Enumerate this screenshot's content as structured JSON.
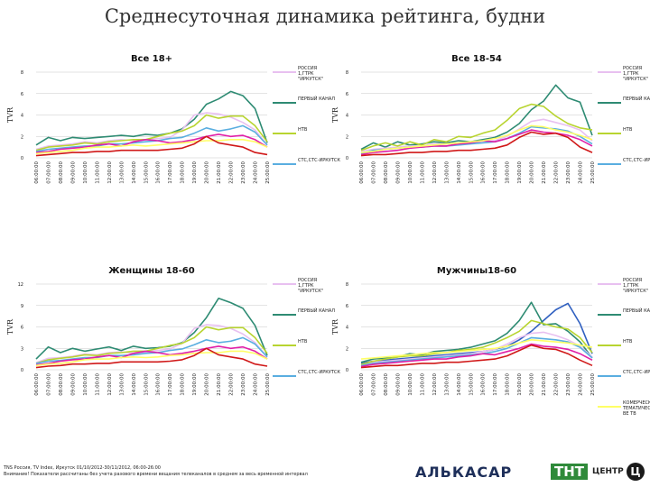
{
  "page": {
    "title": "Среднесуточная динамика рейтинга, будни",
    "footer_source": "TNS Россия, TV Index, Иркутск 01/10/2012-30/11/2012, 06:00-26:00",
    "footer_note": "Внимание! Показатели рассчитаны без учета разового времени вещания телеканалов в среднем за весь временной интервал"
  },
  "logos": {
    "alkasar": "АЛЬКАСАР",
    "tnt": "ТНТ",
    "centr": "ЦЕНТР",
    "c_mark": "Ц"
  },
  "colors": {
    "РОССИЯ 1,ГТРК \"ИРКУТСК\"": "#e8c0f0",
    "ПЕРВЫЙ КАНАЛ": "#2e8b73",
    "НТВ": "#b8d430",
    "СТС,СТС-ИРКУТСК": "#5aaee0",
    "ДОМАШНИЙ": "#e9a8c8",
    "РЕН ТВ": "#d0e040",
    "ТНТ": "#e020a8",
    "ПЯТЫЙ КАНАЛ": "#d01818",
    "КОМЕРЧЕСКИЕ ТЕМАТИЧЕСКИЕ": "#ffff66",
    "ОТВЕТ": "#3060c0"
  },
  "chart_data": [
    {
      "type": "line",
      "title": "Все 18+",
      "ylabel": "TVR",
      "ylim": [
        0,
        8
      ],
      "yticks": [
        0,
        2,
        4,
        6,
        8
      ],
      "x": [
        "06:00:00",
        "07:00:00",
        "08:00:00",
        "09:00:00",
        "10:00:00",
        "11:00:00",
        "12:00:00",
        "13:00:00",
        "14:00:00",
        "15:00:00",
        "16:00:00",
        "17:00:00",
        "18:00:00",
        "19:00:00",
        "20:00:00",
        "21:00:00",
        "22:00:00",
        "23:00:00",
        "24:00:00",
        "25:00:00"
      ],
      "legend": [
        {
          "label": "РОССИЯ 1,ГТРК \"ИРКУТСК\"",
          "color": "#e8c0f0"
        },
        {
          "label": "ПЕРВЫЙ КАНАЛ",
          "color": "#2e8b73"
        },
        {
          "label": "НТВ",
          "color": "#b8d430"
        },
        {
          "label": "СТС,СТС-ИРКУТСК",
          "color": "#5aaee0"
        }
      ],
      "series": [
        {
          "color": "#2e8b73",
          "values": [
            1.2,
            1.9,
            1.6,
            1.9,
            1.8,
            1.9,
            2.0,
            2.1,
            2.0,
            2.2,
            2.1,
            2.3,
            2.7,
            3.6,
            5.0,
            5.5,
            6.2,
            5.8,
            4.6,
            1.4
          ]
        },
        {
          "color": "#e8c0f0",
          "values": [
            0.8,
            1.1,
            1.2,
            1.3,
            1.5,
            1.4,
            1.6,
            1.7,
            1.6,
            1.7,
            1.8,
            1.9,
            2.6,
            4.0,
            4.2,
            4.1,
            3.8,
            3.3,
            2.6,
            1.2
          ]
        },
        {
          "color": "#b8d430",
          "values": [
            0.7,
            1.0,
            1.1,
            1.2,
            1.4,
            1.3,
            1.5,
            1.6,
            1.7,
            1.7,
            2.0,
            2.3,
            2.5,
            3.0,
            4.0,
            3.7,
            3.9,
            3.9,
            3.0,
            1.5
          ]
        },
        {
          "color": "#5aaee0",
          "values": [
            0.6,
            0.8,
            0.9,
            1.0,
            1.1,
            1.1,
            1.3,
            1.3,
            1.4,
            1.5,
            1.6,
            1.8,
            1.9,
            2.3,
            2.8,
            2.5,
            2.7,
            3.0,
            2.4,
            1.2
          ]
        },
        {
          "color": "#e020a8",
          "values": [
            0.5,
            0.6,
            0.8,
            0.9,
            1.0,
            1.2,
            1.3,
            1.1,
            1.5,
            1.7,
            1.6,
            1.4,
            1.5,
            1.7,
            2.0,
            2.2,
            2.0,
            2.1,
            1.7,
            1.0
          ]
        },
        {
          "color": "#ffff66",
          "values": [
            0.4,
            0.5,
            0.6,
            0.7,
            0.9,
            1.0,
            1.0,
            1.1,
            1.2,
            1.1,
            1.2,
            1.3,
            1.4,
            1.5,
            1.6,
            1.6,
            1.7,
            1.7,
            1.5,
            1.0
          ]
        },
        {
          "color": "#d01818",
          "values": [
            0.2,
            0.3,
            0.4,
            0.5,
            0.5,
            0.6,
            0.6,
            0.7,
            0.7,
            0.7,
            0.7,
            0.8,
            0.9,
            1.3,
            2.0,
            1.4,
            1.2,
            1.0,
            0.5,
            0.3
          ]
        }
      ]
    },
    {
      "type": "line",
      "title": "Все 18-54",
      "ylabel": "TVR",
      "ylim": [
        0,
        8
      ],
      "yticks": [
        0,
        2,
        4,
        6,
        8
      ],
      "x": [
        "06:00:00",
        "07:00:00",
        "08:00:00",
        "09:00:00",
        "10:00:00",
        "11:00:00",
        "12:00:00",
        "13:00:00",
        "14:00:00",
        "15:00:00",
        "16:00:00",
        "17:00:00",
        "18:00:00",
        "19:00:00",
        "20:00:00",
        "21:00:00",
        "22:00:00",
        "23:00:00",
        "24:00:00",
        "25:00:00"
      ],
      "legend": [
        {
          "label": "РОССИЯ 1,ГТРК \"ИРКУТСК\"",
          "color": "#e8c0f0"
        },
        {
          "label": "ПЕРВЫЙ КАНАЛ",
          "color": "#2e8b73"
        },
        {
          "label": "НТВ",
          "color": "#b8d430"
        },
        {
          "label": "СТС,СТС-ИРКУТСК",
          "color": "#5aaee0"
        }
      ],
      "series": [
        {
          "color": "#2e8b73",
          "values": [
            0.8,
            1.4,
            1.0,
            1.5,
            1.2,
            1.3,
            1.5,
            1.4,
            1.6,
            1.5,
            1.7,
            1.9,
            2.4,
            3.2,
            4.5,
            5.3,
            6.8,
            5.6,
            5.2,
            2.1
          ]
        },
        {
          "color": "#e8c0f0",
          "values": [
            0.6,
            0.8,
            0.9,
            1.0,
            1.1,
            1.1,
            1.3,
            1.3,
            1.4,
            1.4,
            1.5,
            1.6,
            2.0,
            2.7,
            3.4,
            3.6,
            3.3,
            3.0,
            2.6,
            1.6
          ]
        },
        {
          "color": "#b8d430",
          "values": [
            0.7,
            1.1,
            1.4,
            1.1,
            1.5,
            1.2,
            1.7,
            1.5,
            2.0,
            1.9,
            2.3,
            2.6,
            3.5,
            4.6,
            5.0,
            4.8,
            3.9,
            3.2,
            2.8,
            2.6
          ]
        },
        {
          "color": "#5aaee0",
          "values": [
            0.4,
            0.7,
            0.8,
            0.9,
            1.0,
            1.0,
            1.1,
            1.1,
            1.2,
            1.3,
            1.4,
            1.5,
            1.8,
            2.3,
            2.9,
            2.8,
            2.7,
            2.5,
            2.0,
            1.3
          ]
        },
        {
          "color": "#e020a8",
          "values": [
            0.3,
            0.5,
            0.6,
            0.7,
            0.9,
            1.0,
            1.1,
            1.1,
            1.3,
            1.4,
            1.6,
            1.5,
            1.8,
            2.2,
            2.6,
            2.4,
            2.3,
            2.1,
            1.7,
            1.1
          ]
        },
        {
          "color": "#ffff66",
          "values": [
            0.5,
            0.6,
            0.8,
            0.9,
            1.0,
            1.1,
            1.2,
            1.3,
            1.4,
            1.5,
            1.6,
            1.8,
            2.1,
            2.6,
            3.0,
            2.9,
            2.6,
            2.4,
            2.1,
            1.7
          ]
        },
        {
          "color": "#d01818",
          "values": [
            0.2,
            0.3,
            0.3,
            0.4,
            0.5,
            0.5,
            0.6,
            0.6,
            0.7,
            0.7,
            0.8,
            0.9,
            1.2,
            1.9,
            2.4,
            2.2,
            2.3,
            1.9,
            1.0,
            0.5
          ]
        }
      ]
    },
    {
      "type": "line",
      "title": "Женщины 18-60",
      "ylabel": "TVR",
      "ylim": [
        0,
        12
      ],
      "yticks": [
        0,
        3,
        6,
        9,
        12
      ],
      "x": [
        "06:00:00",
        "07:00:00",
        "08:00:00",
        "09:00:00",
        "10:00:00",
        "11:00:00",
        "12:00:00",
        "13:00:00",
        "14:00:00",
        "15:00:00",
        "16:00:00",
        "17:00:00",
        "18:00:00",
        "19:00:00",
        "20:00:00",
        "21:00:00",
        "22:00:00",
        "23:00:00",
        "24:00:00",
        "25:00:00"
      ],
      "legend": [
        {
          "label": "РОССИЯ 1,ГТРК \"ИРКУТСК\"",
          "color": "#e8c0f0"
        },
        {
          "label": "ПЕРВЫЙ КАНАЛ",
          "color": "#2e8b73"
        },
        {
          "label": "НТВ",
          "color": "#b8d430"
        },
        {
          "label": "СТС,СТС-ИРКУТСК",
          "color": "#5aaee0"
        }
      ],
      "series": [
        {
          "color": "#2e8b73",
          "values": [
            1.5,
            3.2,
            2.4,
            3.0,
            2.6,
            2.9,
            3.2,
            2.7,
            3.3,
            3.0,
            3.1,
            3.3,
            3.8,
            5.2,
            7.3,
            10.0,
            9.4,
            8.6,
            6.2,
            2.0
          ]
        },
        {
          "color": "#e8c0f0",
          "values": [
            1.0,
            1.6,
            1.7,
            1.9,
            2.2,
            2.1,
            2.4,
            2.5,
            2.3,
            2.5,
            2.7,
            2.9,
            3.7,
            5.8,
            6.3,
            6.2,
            5.8,
            5.0,
            3.8,
            1.8
          ]
        },
        {
          "color": "#b8d430",
          "values": [
            0.9,
            1.4,
            1.6,
            1.8,
            2.1,
            2.0,
            2.3,
            2.4,
            2.6,
            2.6,
            3.0,
            3.4,
            3.7,
            4.5,
            6.0,
            5.6,
            5.9,
            5.9,
            4.5,
            2.3
          ]
        },
        {
          "color": "#5aaee0",
          "values": [
            0.9,
            1.2,
            1.3,
            1.5,
            1.7,
            1.7,
            2.0,
            2.0,
            2.1,
            2.3,
            2.4,
            2.7,
            2.9,
            3.5,
            4.2,
            3.8,
            4.0,
            4.5,
            3.6,
            1.8
          ]
        },
        {
          "color": "#e020a8",
          "values": [
            0.7,
            0.9,
            1.2,
            1.4,
            1.5,
            1.8,
            2.0,
            1.7,
            2.3,
            2.6,
            2.4,
            2.1,
            2.3,
            2.6,
            3.0,
            3.3,
            3.0,
            3.2,
            2.6,
            1.5
          ]
        },
        {
          "color": "#ffff66",
          "values": [
            0.6,
            0.8,
            0.9,
            1.1,
            1.4,
            1.5,
            1.5,
            1.7,
            1.8,
            1.7,
            1.8,
            2.0,
            2.1,
            2.3,
            2.4,
            2.4,
            2.6,
            2.6,
            2.3,
            1.5
          ]
        },
        {
          "color": "#d01818",
          "values": [
            0.3,
            0.5,
            0.6,
            0.8,
            0.8,
            0.9,
            0.9,
            1.1,
            1.1,
            1.1,
            1.1,
            1.2,
            1.4,
            2.0,
            3.0,
            2.1,
            1.8,
            1.5,
            0.8,
            0.5
          ]
        }
      ]
    },
    {
      "type": "line",
      "title": "Мужчины18-60",
      "ylabel": "TVR",
      "ylim": [
        0,
        8
      ],
      "yticks": [
        0,
        2,
        4,
        6,
        8
      ],
      "x": [
        "06:00:00",
        "07:00:00",
        "08:00:00",
        "09:00:00",
        "10:00:00",
        "11:00:00",
        "12:00:00",
        "13:00:00",
        "14:00:00",
        "15:00:00",
        "16:00:00",
        "17:00:00",
        "18:00:00",
        "19:00:00",
        "20:00:00",
        "21:00:00",
        "22:00:00",
        "23:00:00",
        "24:00:00",
        "25:00:00"
      ],
      "legend": [
        {
          "label": "РОССИЯ 1,ГТРК \"ИРКУТСК\"",
          "color": "#e8c0f0"
        },
        {
          "label": "ПЕРВЫЙ КАНАЛ",
          "color": "#2e8b73"
        },
        {
          "label": "НТВ",
          "color": "#b8d430"
        },
        {
          "label": "СТС,СТС-ИРКУТСК",
          "color": "#5aaee0"
        },
        {
          "label": "КОМЕРЧЕСКИЕ ТЕМАТИЧЕСКИЕ ВЕ ТВ",
          "color": "#ffff66"
        }
      ],
      "series": [
        {
          "color": "#3060c0",
          "values": [
            0.6,
            0.8,
            0.9,
            1.0,
            1.1,
            1.2,
            1.3,
            1.4,
            1.5,
            1.6,
            1.7,
            1.9,
            2.2,
            2.8,
            3.6,
            4.6,
            5.6,
            6.2,
            4.3,
            1.5
          ]
        },
        {
          "color": "#2e8b73",
          "values": [
            0.7,
            1.0,
            1.1,
            1.2,
            1.5,
            1.4,
            1.7,
            1.8,
            1.9,
            2.1,
            2.4,
            2.7,
            3.4,
            4.6,
            6.3,
            4.2,
            4.3,
            3.6,
            2.6,
            1.1
          ]
        },
        {
          "color": "#e8c0f0",
          "values": [
            0.5,
            0.7,
            0.8,
            0.9,
            1.0,
            1.1,
            1.2,
            1.3,
            1.4,
            1.5,
            1.7,
            1.9,
            2.4,
            3.0,
            3.4,
            3.5,
            3.2,
            2.8,
            2.2,
            1.2
          ]
        },
        {
          "color": "#b8d430",
          "values": [
            0.5,
            0.8,
            1.0,
            1.2,
            1.3,
            1.3,
            1.5,
            1.6,
            1.8,
            1.9,
            2.1,
            2.5,
            3.0,
            3.6,
            4.6,
            4.3,
            4.0,
            3.8,
            3.0,
            1.6
          ]
        },
        {
          "color": "#5aaee0",
          "values": [
            0.4,
            0.6,
            0.7,
            0.8,
            0.9,
            1.0,
            1.1,
            1.2,
            1.3,
            1.4,
            1.5,
            1.7,
            2.0,
            2.5,
            3.0,
            2.9,
            2.8,
            2.6,
            2.1,
            1.1
          ]
        },
        {
          "color": "#e020a8",
          "values": [
            0.3,
            0.5,
            0.6,
            0.7,
            0.8,
            0.9,
            1.0,
            1.0,
            1.2,
            1.3,
            1.5,
            1.4,
            1.7,
            2.0,
            2.4,
            2.2,
            2.1,
            1.9,
            1.5,
            0.9
          ]
        },
        {
          "color": "#ffff66",
          "values": [
            1.0,
            1.1,
            1.2,
            1.3,
            1.4,
            1.5,
            1.6,
            1.6,
            1.7,
            1.8,
            1.9,
            2.0,
            2.2,
            2.5,
            2.8,
            2.7,
            2.6,
            2.5,
            2.3,
            2.1
          ]
        },
        {
          "color": "#d01818",
          "values": [
            0.2,
            0.3,
            0.4,
            0.4,
            0.5,
            0.6,
            0.6,
            0.7,
            0.7,
            0.8,
            0.9,
            1.0,
            1.3,
            1.8,
            2.3,
            2.0,
            1.9,
            1.5,
            0.9,
            0.4
          ]
        }
      ]
    }
  ]
}
